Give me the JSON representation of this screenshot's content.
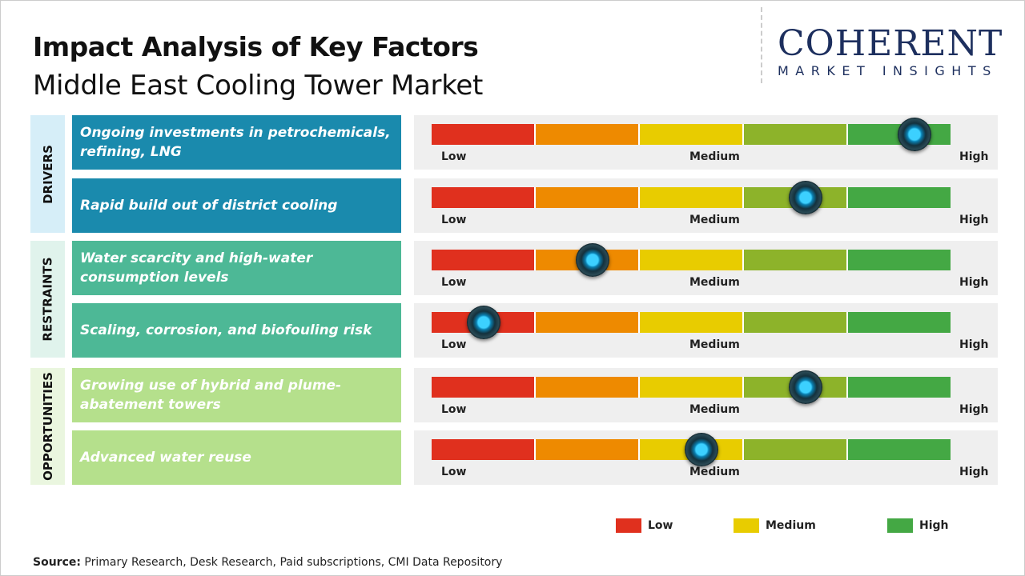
{
  "title": "Impact Analysis of Key Factors",
  "subtitle": "Middle East Cooling Tower Market",
  "logo": {
    "main": "COHERENT",
    "sub": "MARKET INSIGHTS"
  },
  "scale": {
    "low": "Low",
    "medium": "Medium",
    "high": "High",
    "colors": [
      "#e0301e",
      "#ee8a00",
      "#e8cc00",
      "#8db32a",
      "#44a844"
    ]
  },
  "groups": [
    {
      "label": "DRIVERS",
      "color": "#1a8aad",
      "bg": "#d6eef8"
    },
    {
      "label": "RESTRAINTS",
      "color": "#4db896",
      "bg": "#e0f3ec"
    },
    {
      "label": "OPPORTUNITIES",
      "color": "#b5e08c",
      "bg": "#eaf6df"
    }
  ],
  "factors": [
    {
      "text": "Ongoing investments in petrochemicals, refining, LNG",
      "group": 0,
      "impact": 0.93
    },
    {
      "text": "Rapid build out of district cooling",
      "group": 0,
      "impact": 0.72
    },
    {
      "text": "Water scarcity and high-water consumption levels",
      "group": 1,
      "impact": 0.31
    },
    {
      "text": "Scaling, corrosion, and biofouling risk",
      "group": 1,
      "impact": 0.1
    },
    {
      "text": "Growing use of hybrid and plume-abatement towers",
      "group": 2,
      "impact": 0.72
    },
    {
      "text": "Advanced water reuse",
      "group": 2,
      "impact": 0.52
    }
  ],
  "legend": [
    {
      "label": "Low",
      "color": "#e0301e"
    },
    {
      "label": "Medium",
      "color": "#e8cc00"
    },
    {
      "label": "High",
      "color": "#44a844"
    }
  ],
  "source": {
    "label": "Source:",
    "text": "Primary Research, Desk Research, Paid subscriptions, CMI Data Repository"
  }
}
